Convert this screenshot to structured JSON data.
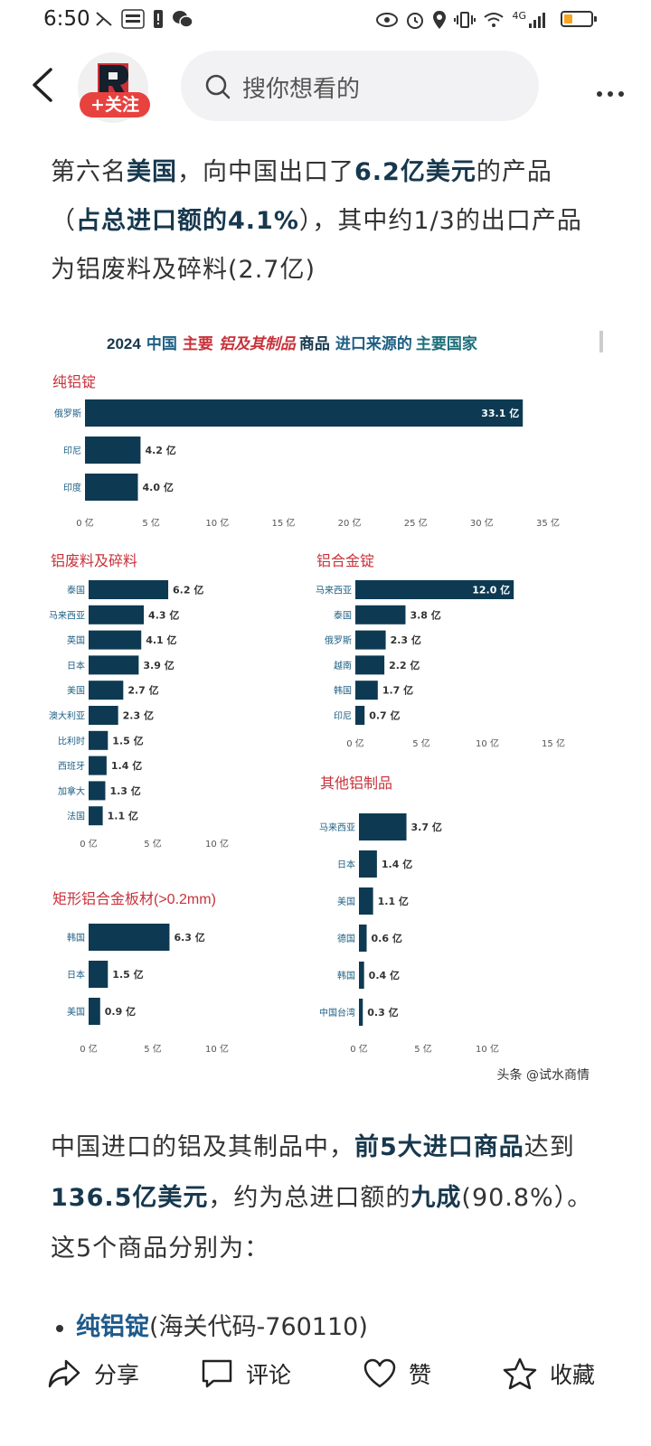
{
  "status": {
    "time": "6:50",
    "network": "4G"
  },
  "header": {
    "follow_label": "+关注",
    "search_placeholder": "搜你想看的"
  },
  "para1": {
    "s1": "第六名",
    "b1": "美国",
    "s2": "，向中国出口了",
    "b2": "6.2亿美元",
    "s3": "的产品",
    "s4": "（",
    "b3": "占总进口额的4.1%",
    "s5": "），其中约1/3的出口产品为铝废料及碎料(2.7亿)"
  },
  "chart_data": {
    "type": "bar",
    "title": {
      "year": "2024",
      "t1": "中国",
      "t2": "主要",
      "t3": "铝及其制品",
      "t4": "商品",
      "t5": "进口来源的",
      "t6": "主要国家"
    },
    "unit": "亿",
    "watermark": "头条 @试水商情",
    "colors": {
      "bar": "#0d3a52",
      "panel_title": "#c8323a",
      "label": "#1d5f83"
    },
    "panels": [
      {
        "title": "纯铝锭",
        "categories": [
          "俄罗斯",
          "印尼",
          "印度"
        ],
        "values": [
          33.1,
          4.2,
          4.0
        ],
        "ticks": [
          "0 亿",
          "5 亿",
          "10 亿",
          "15 亿",
          "20 亿",
          "25 亿",
          "30 亿",
          "35 亿"
        ],
        "xmax": 35
      },
      {
        "title": "铝废料及碎料",
        "categories": [
          "泰国",
          "马来西亚",
          "英国",
          "日本",
          "美国",
          "澳大利亚",
          "比利时",
          "西班牙",
          "加拿大",
          "法国"
        ],
        "values": [
          6.2,
          4.3,
          4.1,
          3.9,
          2.7,
          2.3,
          1.5,
          1.4,
          1.3,
          1.1
        ],
        "ticks": [
          "0 亿",
          "5 亿",
          "10 亿"
        ],
        "xmax": 10
      },
      {
        "title": "铝合金锭",
        "categories": [
          "马来西亚",
          "泰国",
          "俄罗斯",
          "越南",
          "韩国",
          "印尼"
        ],
        "values": [
          12.0,
          3.8,
          2.3,
          2.2,
          1.7,
          0.7
        ],
        "ticks": [
          "0 亿",
          "5 亿",
          "10 亿",
          "15 亿"
        ],
        "xmax": 15
      },
      {
        "title": "矩形铝合金板材(>0.2mm)",
        "categories": [
          "韩国",
          "日本",
          "美国"
        ],
        "values": [
          6.3,
          1.5,
          0.9
        ],
        "ticks": [
          "0 亿",
          "5 亿",
          "10 亿"
        ],
        "xmax": 10
      },
      {
        "title": "其他铝制品",
        "categories": [
          "马来西亚",
          "日本",
          "美国",
          "德国",
          "韩国",
          "中国台湾"
        ],
        "values": [
          3.7,
          1.4,
          1.1,
          0.6,
          0.4,
          0.3
        ],
        "ticks": [
          "0 亿",
          "5 亿",
          "10 亿"
        ],
        "xmax": 10
      }
    ]
  },
  "para2": {
    "s1": "中国进口的铝及其制品中，",
    "b1": "前5大进口商品",
    "s2": "达到",
    "b2": "136.5亿美元",
    "s3": "，约为总进口额的",
    "b3": "九成",
    "s4": "(90.8%）。这5个商品分别为："
  },
  "bullet1": {
    "b": "纯铝锭",
    "s": "(海关代码-760110)"
  },
  "actions": {
    "share": "分享",
    "comment": "评论",
    "like": "赞",
    "favorite": "收藏"
  }
}
